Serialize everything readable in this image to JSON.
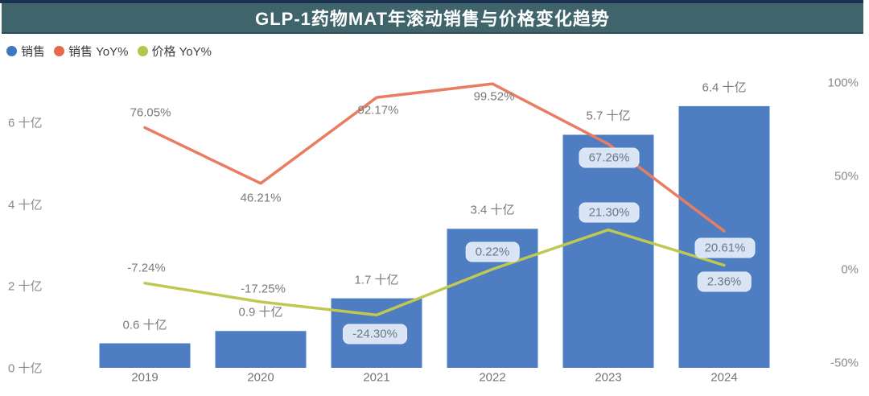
{
  "title": "GLP-1药物MAT年滚动销售与价格变化趋势",
  "colors": {
    "title_bar": "#3f646b",
    "title_strip": "#1b3350",
    "bar": "#4e7dc1",
    "sales_yoy_line": "#e97d62",
    "price_yoy_line": "#bfc951",
    "badge_bg": "#d9e4f4",
    "label_text": "#7a7a7a",
    "axis_text": "#8a8a8a"
  },
  "legend": [
    {
      "id": "sales",
      "label": "销售",
      "color": "#3d79c0"
    },
    {
      "id": "sales-yoy",
      "label": "销售 YoY%",
      "color": "#e5694f"
    },
    {
      "id": "price-yoy",
      "label": "价格 YoY%",
      "color": "#b8c24e"
    }
  ],
  "chart_data": {
    "type": "combo-bar-line",
    "categories": [
      "2019",
      "2020",
      "2021",
      "2022",
      "2023",
      "2024"
    ],
    "series": [
      {
        "id": "sales",
        "name": "销售",
        "type": "bar",
        "axis": "left",
        "unit": "十亿",
        "color": "#4e7dc1",
        "values": [
          0.6,
          0.9,
          1.7,
          3.4,
          5.7,
          6.4
        ],
        "labels": [
          "0.6 十亿",
          "0.9 十亿",
          "1.7 十亿",
          "3.4 十亿",
          "5.7 十亿",
          "6.4 十亿"
        ]
      },
      {
        "id": "sales-yoy",
        "name": "销售 YoY%",
        "type": "line",
        "axis": "right",
        "color": "#e97d62",
        "values": [
          76.05,
          46.21,
          92.17,
          99.52,
          67.26,
          20.61
        ],
        "labels": [
          "76.05%",
          "46.21%",
          "92.17%",
          "99.52%",
          "67.26%",
          "20.61%"
        ],
        "label_style": [
          "plain",
          "plain",
          "plain",
          "plain",
          "badge",
          "badge"
        ],
        "label_offsets": [
          [
            7,
            -19
          ],
          [
            0,
            18
          ],
          [
            2,
            16
          ],
          [
            2,
            16
          ],
          [
            1,
            17
          ],
          [
            1,
            21
          ]
        ]
      },
      {
        "id": "price-yoy",
        "name": "价格 YoY%",
        "type": "line",
        "axis": "right",
        "color": "#bfc951",
        "values": [
          -7.24,
          -17.25,
          -24.3,
          0.22,
          21.3,
          2.36
        ],
        "labels": [
          "-7.24%",
          "-17.25%",
          "-24.30%",
          "0.22%",
          "21.30%",
          "2.36%"
        ],
        "label_style": [
          "plain",
          "plain",
          "badge",
          "badge",
          "badge",
          "badge"
        ],
        "label_offsets": [
          [
            2,
            -19
          ],
          [
            3,
            -16
          ],
          [
            -2,
            24
          ],
          [
            0,
            -21
          ],
          [
            1,
            -22
          ],
          [
            0,
            20
          ]
        ]
      }
    ],
    "left_axis": {
      "unit": "十亿",
      "ticks": [
        {
          "value": 0,
          "label": "0 十亿"
        },
        {
          "value": 2,
          "label": "2 十亿"
        },
        {
          "value": 4,
          "label": "4 十亿"
        },
        {
          "value": 6,
          "label": "6 十亿"
        }
      ]
    },
    "right_axis": {
      "ticks": [
        {
          "value": -50,
          "label": "-50%"
        },
        {
          "value": 0,
          "label": "0%"
        },
        {
          "value": 50,
          "label": "50%"
        },
        {
          "value": 100,
          "label": "100%"
        }
      ]
    },
    "grid": false,
    "legend_position": "top-left"
  }
}
